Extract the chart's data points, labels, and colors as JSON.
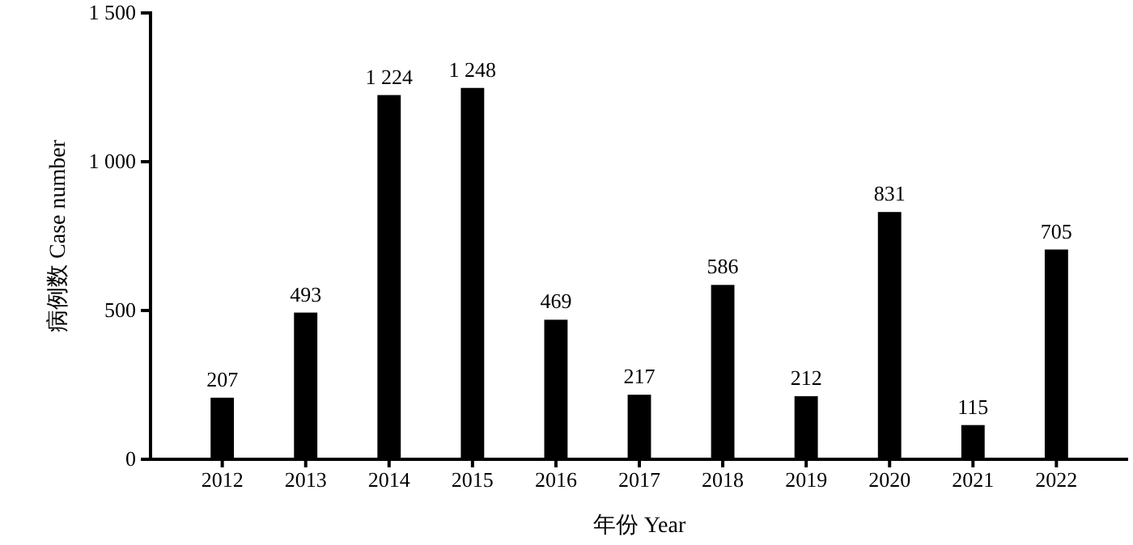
{
  "chart_data": {
    "type": "bar",
    "xlabel": "年份 Year",
    "ylabel": "病例数 Case number",
    "categories": [
      "2012",
      "2013",
      "2014",
      "2015",
      "2016",
      "2017",
      "2018",
      "2019",
      "2020",
      "2021",
      "2022"
    ],
    "values": [
      207,
      493,
      1224,
      1248,
      469,
      217,
      586,
      212,
      831,
      115,
      705
    ],
    "value_labels": [
      "207",
      "493",
      "1 224",
      "1 248",
      "469",
      "217",
      "586",
      "212",
      "831",
      "115",
      "705"
    ],
    "color": "#000000",
    "ylim": [
      0,
      1500
    ],
    "yticks": [
      0,
      500,
      {
        "value": 1000,
        "label": "1 000"
      },
      {
        "value": 1500,
        "label": "1 500"
      }
    ],
    "grid": false
  }
}
